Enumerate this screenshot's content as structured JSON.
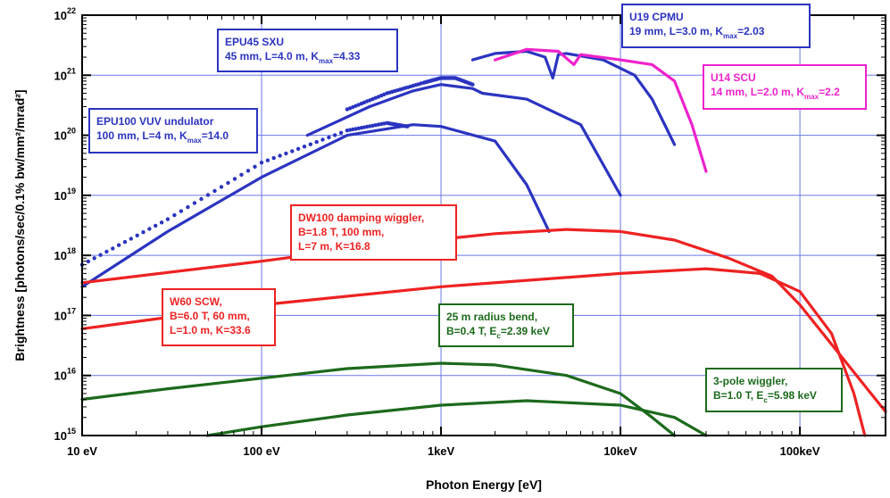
{
  "chart_data": {
    "type": "line",
    "xlabel": "Photon Energy [eV]",
    "ylabel": "Brightness [photons/sec/0.1% bw/mm²/mrad²]",
    "xscale": "log",
    "yscale": "log",
    "xlim": [
      10,
      300000
    ],
    "ylim": [
      1000000000000000.0,
      1e+22
    ],
    "grid": true,
    "x_ticks": [
      {
        "value": 10,
        "label": "10 eV"
      },
      {
        "value": 100,
        "label": "100 eV"
      },
      {
        "value": 1000,
        "label": "1keV"
      },
      {
        "value": 10000,
        "label": "10keV"
      },
      {
        "value": 100000,
        "label": "100keV"
      }
    ],
    "y_ticks": [
      {
        "value": 1000000000000000.0,
        "base": "10",
        "exp": "15"
      },
      {
        "value": 1e+16,
        "base": "10",
        "exp": "16"
      },
      {
        "value": 1e+17,
        "base": "10",
        "exp": "17"
      },
      {
        "value": 1e+18,
        "base": "10",
        "exp": "18"
      },
      {
        "value": 1e+19,
        "base": "10",
        "exp": "19"
      },
      {
        "value": 1e+20,
        "base": "10",
        "exp": "20"
      },
      {
        "value": 1e+21,
        "base": "10",
        "exp": "21"
      },
      {
        "value": 1e+22,
        "base": "10",
        "exp": "22"
      }
    ],
    "series": [
      {
        "id": "epu100-line",
        "color": "#2b34c0",
        "style": "solid",
        "x": [
          10,
          30,
          100,
          300,
          700,
          1000,
          2000,
          3000,
          4000
        ],
        "y": [
          3e+17,
          2.5e+18,
          2e+19,
          1e+20,
          1.5e+20,
          1.4e+20,
          8e+19,
          1.5e+19,
          2.5e+18
        ]
      },
      {
        "id": "epu100-dots",
        "color": "#2b34c0",
        "style": "dotted",
        "x": [
          10,
          30,
          100,
          300,
          500,
          650
        ],
        "y": [
          7e+17,
          4e+18,
          3.5e+19,
          1.2e+20,
          1.6e+20,
          1.4e+20
        ]
      },
      {
        "id": "epu45-line",
        "color": "#2b34c0",
        "style": "solid",
        "x": [
          180,
          400,
          700,
          1000,
          1500,
          1700,
          3000,
          6000,
          10000
        ],
        "y": [
          1e+20,
          3e+20,
          5.5e+20,
          7e+20,
          6e+20,
          5e+20,
          4e+20,
          1.5e+20,
          1e+19
        ]
      },
      {
        "id": "epu45-dots",
        "color": "#2b34c0",
        "style": "dotted",
        "x": [
          300,
          500,
          800,
          1000,
          1200,
          1500
        ],
        "y": [
          2.7e+20,
          5e+20,
          7.5e+20,
          9e+20,
          9e+20,
          7e+20
        ]
      },
      {
        "id": "u19-cpmu",
        "color": "#2b34c0",
        "style": "solid",
        "x": [
          1500,
          2000,
          3000,
          3800,
          4200,
          4500,
          5000,
          8000,
          12000,
          15000,
          20000
        ],
        "y": [
          1.8e+21,
          2.3e+21,
          2.5e+21,
          2e+21,
          9e+20,
          2.2e+21,
          2.3e+21,
          1.8e+21,
          1e+21,
          4e+20,
          7e+19
        ]
      },
      {
        "id": "u14-scu",
        "color": "#ee22cc",
        "style": "solid",
        "x": [
          2000,
          3000,
          4500,
          5500,
          6000,
          10000,
          15000,
          20000,
          25000,
          30000
        ],
        "y": [
          1.8e+21,
          2.7e+21,
          2.5e+21,
          1.5e+21,
          2.2e+21,
          1.8e+21,
          1.5e+21,
          8e+20,
          1.5e+20,
          2.5e+19
        ]
      },
      {
        "id": "dw100",
        "color": "#ee2222",
        "style": "solid",
        "x": [
          10,
          100,
          500,
          2000,
          5000,
          10000,
          20000,
          40000,
          70000,
          100000,
          300000
        ],
        "y": [
          3.5e+17,
          8e+17,
          1.5e+18,
          2.3e+18,
          2.7e+18,
          2.5e+18,
          1.8e+18,
          9e+17,
          4.5e+17,
          1.5e+17,
          2500000000000000.0
        ]
      },
      {
        "id": "w60-scw",
        "color": "#ee2222",
        "style": "solid",
        "x": [
          10,
          100,
          1000,
          10000,
          30000,
          60000,
          100000,
          150000,
          200000,
          230000
        ],
        "y": [
          6e+16,
          1.5e+17,
          3e+17,
          5e+17,
          6e+17,
          5e+17,
          2.5e+17,
          5e+16,
          5000000000000000.0,
          1000000000000000.0
        ]
      },
      {
        "id": "bend-25m",
        "color": "#1c6a1c",
        "style": "solid",
        "x": [
          10,
          30,
          100,
          300,
          1000,
          2000,
          5000,
          10000,
          15000,
          20000
        ],
        "y": [
          4000000000000000.0,
          6000000000000000.0,
          9000000000000000.0,
          1.3e+16,
          1.6e+16,
          1.5e+16,
          1e+16,
          5000000000000000.0,
          2000000000000000.0,
          1000000000000000.0
        ]
      },
      {
        "id": "three-pole",
        "color": "#1c6a1c",
        "style": "solid",
        "x": [
          50,
          100,
          300,
          1000,
          3000,
          10000,
          20000,
          30000
        ],
        "y": [
          1000000000000000.0,
          1400000000000000.0,
          2200000000000000.0,
          3200000000000000.0,
          3800000000000000.0,
          3200000000000000.0,
          2000000000000000.0,
          1000000000000000.0
        ]
      }
    ],
    "annotations": [
      {
        "id": "ann-epu100",
        "color": "#2b34c0",
        "lines": [
          {
            "text": "EPU100 VUV undulator"
          },
          {
            "text": "100 mm, L=4 m, K",
            "sub": "max",
            "tail": "=14.0"
          }
        ]
      },
      {
        "id": "ann-epu45",
        "color": "#2b34c0",
        "lines": [
          {
            "text": "EPU45 SXU"
          },
          {
            "text": "45 mm, L=4.0 m, K",
            "sub": "max",
            "tail": "=4.33"
          }
        ]
      },
      {
        "id": "ann-u19",
        "color": "#2b34c0",
        "lines": [
          {
            "text": "U19 CPMU"
          },
          {
            "text": "19 mm, L=3.0 m, K",
            "sub": "max",
            "tail": "=2.03"
          }
        ]
      },
      {
        "id": "ann-u14",
        "color": "#ee22cc",
        "lines": [
          {
            "text": "U14 SCU"
          },
          {
            "text": "14 mm, L=2.0 m, K",
            "sub": "max",
            "tail": "=2.2"
          }
        ]
      },
      {
        "id": "ann-dw100",
        "color": "#ee2222",
        "lines": [
          {
            "text": "DW100 damping wiggler,"
          },
          {
            "text": "B=1.8 T, 100 mm,"
          },
          {
            "text": "L=7 m, K=16.8"
          }
        ]
      },
      {
        "id": "ann-w60",
        "color": "#ee2222",
        "lines": [
          {
            "text": "W60 SCW,"
          },
          {
            "text": "B=6.0 T, 60 mm,"
          },
          {
            "text": "L=1.0 m, K=33.6"
          }
        ]
      },
      {
        "id": "ann-bend",
        "color": "#1c6a1c",
        "lines": [
          {
            "text": "25 m radius bend,"
          },
          {
            "text": "B=0.4 T, E",
            "sub": "c",
            "tail": "=2.39 keV"
          }
        ]
      },
      {
        "id": "ann-3pole",
        "color": "#1c6a1c",
        "lines": [
          {
            "text": "3-pole wiggler,"
          },
          {
            "text": "B=1.0 T, E",
            "sub": "c",
            "tail": "=5.98 keV"
          }
        ]
      }
    ]
  }
}
